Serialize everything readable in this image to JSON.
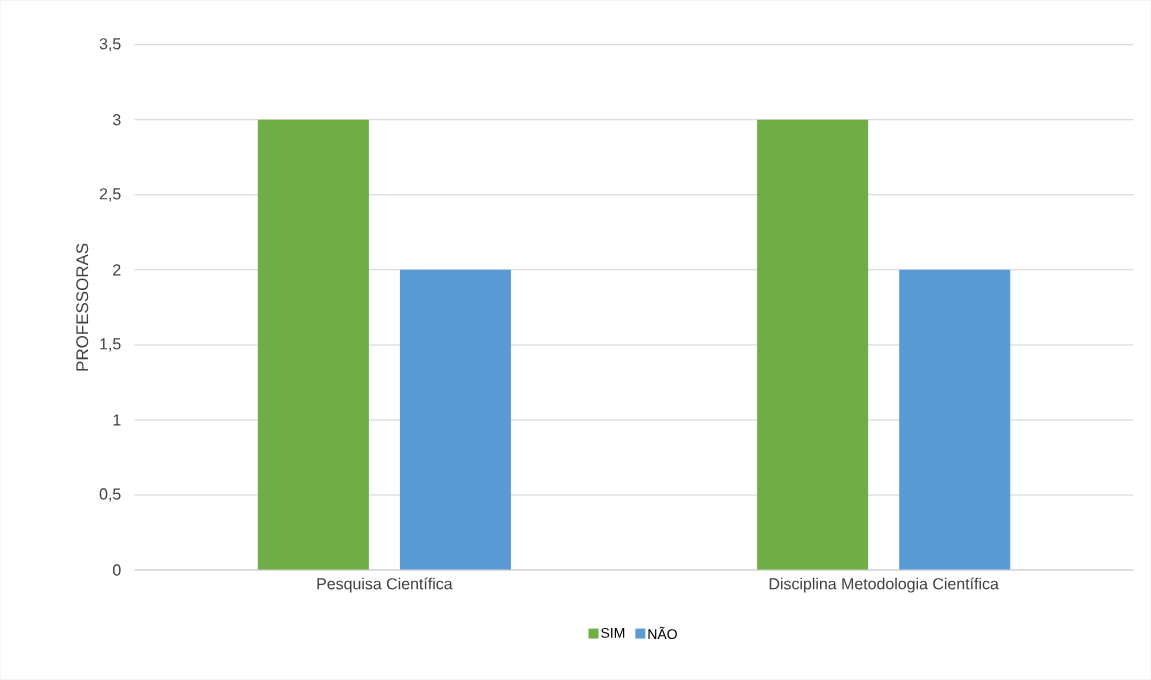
{
  "chart_data": {
    "type": "bar",
    "ylabel": "PROFESSORAS",
    "categories": [
      "Pesquisa Científica",
      "Disciplina Metodologia Científica"
    ],
    "series": [
      {
        "name": "SIM",
        "color": "#70ad47",
        "values": [
          3,
          3
        ]
      },
      {
        "name": "NÃO",
        "color": "#5b9bd5",
        "values": [
          2,
          2
        ]
      }
    ],
    "ylim": [
      0,
      3.5
    ],
    "yticks": [
      0,
      {
        "value": 0.5,
        "label": "0,5"
      },
      1,
      {
        "value": 1.5,
        "label": "1,5"
      },
      2,
      {
        "value": 2.5,
        "label": "2,5"
      },
      3,
      {
        "value": 3.5,
        "label": "3,5"
      }
    ],
    "grid": "y",
    "legend": "bottom"
  }
}
